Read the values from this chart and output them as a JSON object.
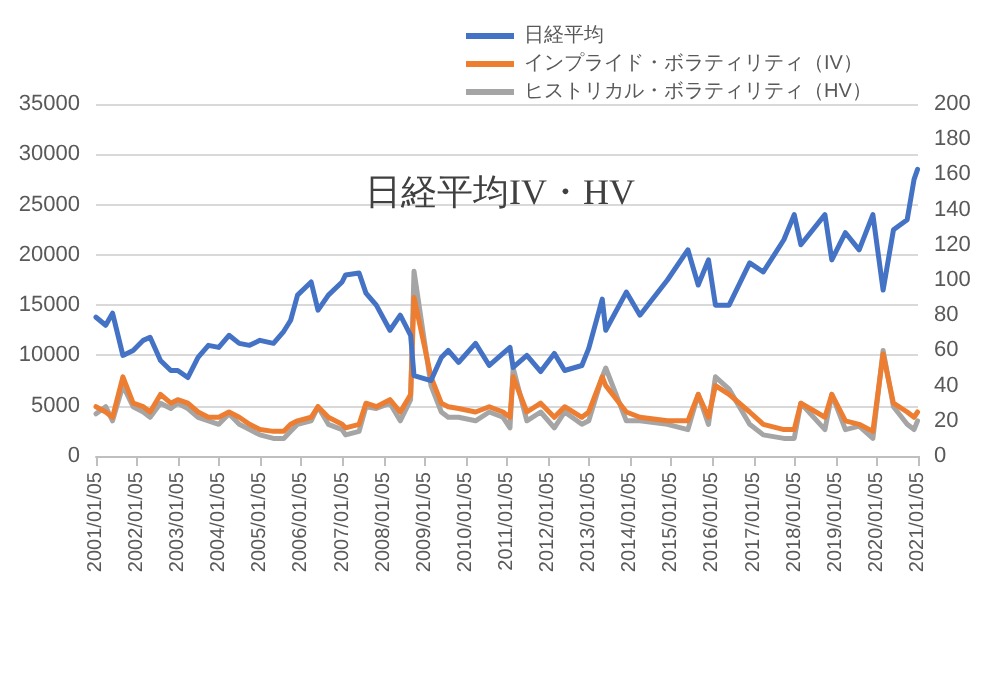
{
  "chart_data": {
    "type": "line",
    "title": "日経平均IV・HV",
    "x": [
      "2001-01-05",
      "2001-04",
      "2001-06",
      "2001-09",
      "2001-12",
      "2002-03",
      "2002-05",
      "2002-08",
      "2002-11",
      "2003-01",
      "2003-04",
      "2003-07",
      "2003-10",
      "2004-01",
      "2004-04",
      "2004-07",
      "2004-10",
      "2005-01",
      "2005-05",
      "2005-08",
      "2005-10",
      "2005-12",
      "2006-04",
      "2006-06",
      "2006-09",
      "2007-01",
      "2007-02",
      "2007-06",
      "2007-08",
      "2007-11",
      "2008-03",
      "2008-06",
      "2008-09",
      "2008-10",
      "2009-03",
      "2009-06",
      "2009-08",
      "2009-11",
      "2010-04",
      "2010-08",
      "2010-12",
      "2011-02",
      "2011-03",
      "2011-07",
      "2011-11",
      "2012-03",
      "2012-06",
      "2012-11",
      "2013-01",
      "2013-05",
      "2013-06",
      "2013-12",
      "2014-04",
      "2014-12",
      "2015-06",
      "2015-09",
      "2015-12",
      "2016-02",
      "2016-06",
      "2016-12",
      "2017-04",
      "2017-10",
      "2018-01",
      "2018-03",
      "2018-10",
      "2018-12",
      "2019-04",
      "2019-08",
      "2019-12",
      "2020-03",
      "2020-06",
      "2020-10",
      "2020-12",
      "2021-01"
    ],
    "series": [
      {
        "name": "日経平均",
        "color": "#4472c4",
        "values": [
          13800,
          13000,
          14200,
          10000,
          10500,
          11500,
          11800,
          9500,
          8500,
          8500,
          7800,
          9800,
          11000,
          10800,
          12000,
          11200,
          11000,
          11500,
          11200,
          12400,
          13500,
          16000,
          17300,
          14500,
          16000,
          17300,
          18000,
          18200,
          16200,
          15000,
          12500,
          14000,
          12000,
          8000,
          7500,
          9800,
          10500,
          9300,
          11200,
          9000,
          10200,
          10800,
          8800,
          10000,
          8400,
          10200,
          8500,
          9000,
          10700,
          15600,
          12500,
          16300,
          14000,
          17500,
          20500,
          17000,
          19500,
          15000,
          15000,
          19200,
          18300,
          21500,
          24000,
          21000,
          24000,
          19500,
          22200,
          20500,
          24000,
          16500,
          22500,
          23500,
          27500,
          28500
        ]
      },
      {
        "name": "インプライド・ボラティリティ（IV）",
        "color": "#ed7d31",
        "axis": "y2",
        "values": [
          28,
          25,
          22,
          45,
          30,
          28,
          25,
          35,
          30,
          32,
          30,
          25,
          22,
          22,
          25,
          22,
          18,
          15,
          14,
          14,
          18,
          20,
          22,
          28,
          22,
          18,
          16,
          18,
          30,
          28,
          32,
          25,
          35,
          90,
          45,
          30,
          28,
          27,
          25,
          28,
          25,
          22,
          45,
          25,
          30,
          22,
          28,
          22,
          25,
          45,
          40,
          25,
          22,
          20,
          20,
          35,
          22,
          40,
          35,
          25,
          18,
          15,
          15,
          30,
          22,
          35,
          20,
          18,
          14,
          58,
          30,
          25,
          22,
          25
        ]
      },
      {
        "name": "ヒストリカル・ボラティリティ（HV）",
        "color": "#a5a5a5",
        "axis": "y2",
        "values": [
          24,
          28,
          20,
          40,
          28,
          25,
          22,
          30,
          27,
          30,
          27,
          22,
          20,
          18,
          24,
          18,
          15,
          12,
          10,
          10,
          14,
          18,
          20,
          28,
          18,
          15,
          12,
          14,
          28,
          27,
          30,
          20,
          32,
          105,
          40,
          25,
          22,
          22,
          20,
          25,
          22,
          16,
          50,
          20,
          25,
          16,
          25,
          18,
          20,
          45,
          50,
          20,
          20,
          18,
          15,
          35,
          18,
          45,
          38,
          18,
          12,
          10,
          10,
          30,
          15,
          35,
          15,
          17,
          10,
          60,
          28,
          18,
          15,
          20
        ]
      }
    ],
    "xlim": [
      "2001-01-05",
      "2021-01-05"
    ],
    "xticks": [
      {
        "value": "2001-01-05",
        "label": "2001/01/05"
      },
      {
        "value": "2002-01-05",
        "label": "2002/01/05"
      },
      {
        "value": "2003-01-05",
        "label": "2003/01/05"
      },
      {
        "value": "2004-01-05",
        "label": "2004/01/05"
      },
      {
        "value": "2005-01-05",
        "label": "2005/01/05"
      },
      {
        "value": "2006-01-05",
        "label": "2006/01/05"
      },
      {
        "value": "2007-01-05",
        "label": "2007/01/05"
      },
      {
        "value": "2008-01-05",
        "label": "2008/01/05"
      },
      {
        "value": "2009-01-05",
        "label": "2009/01/05"
      },
      {
        "value": "2010-01-05",
        "label": "2010/01/05"
      },
      {
        "value": "2011-01-05",
        "label": "2011/01/05"
      },
      {
        "value": "2012-01-05",
        "label": "2012/01/05"
      },
      {
        "value": "2013-01-05",
        "label": "2013/01/05"
      },
      {
        "value": "2014-01-05",
        "label": "2014/01/05"
      },
      {
        "value": "2015-01-05",
        "label": "2015/01/05"
      },
      {
        "value": "2016-01-05",
        "label": "2016/01/05"
      },
      {
        "value": "2017-01-05",
        "label": "2017/01/05"
      },
      {
        "value": "2018-01-05",
        "label": "2018/01/05"
      },
      {
        "value": "2019-01-05",
        "label": "2019/01/05"
      },
      {
        "value": "2020-01-05",
        "label": "2020/01/05"
      },
      {
        "value": "2021-01-05",
        "label": "2021/01/05"
      }
    ],
    "ylim": [
      0,
      35000
    ],
    "yticks": [
      0,
      5000,
      10000,
      15000,
      20000,
      25000,
      30000,
      35000
    ],
    "y2lim": [
      0,
      200
    ],
    "y2ticks": [
      0,
      20,
      40,
      60,
      80,
      100,
      120,
      140,
      160,
      180,
      200
    ],
    "grid": "y",
    "legend": "top",
    "marker": "none",
    "line_style": "solid"
  }
}
